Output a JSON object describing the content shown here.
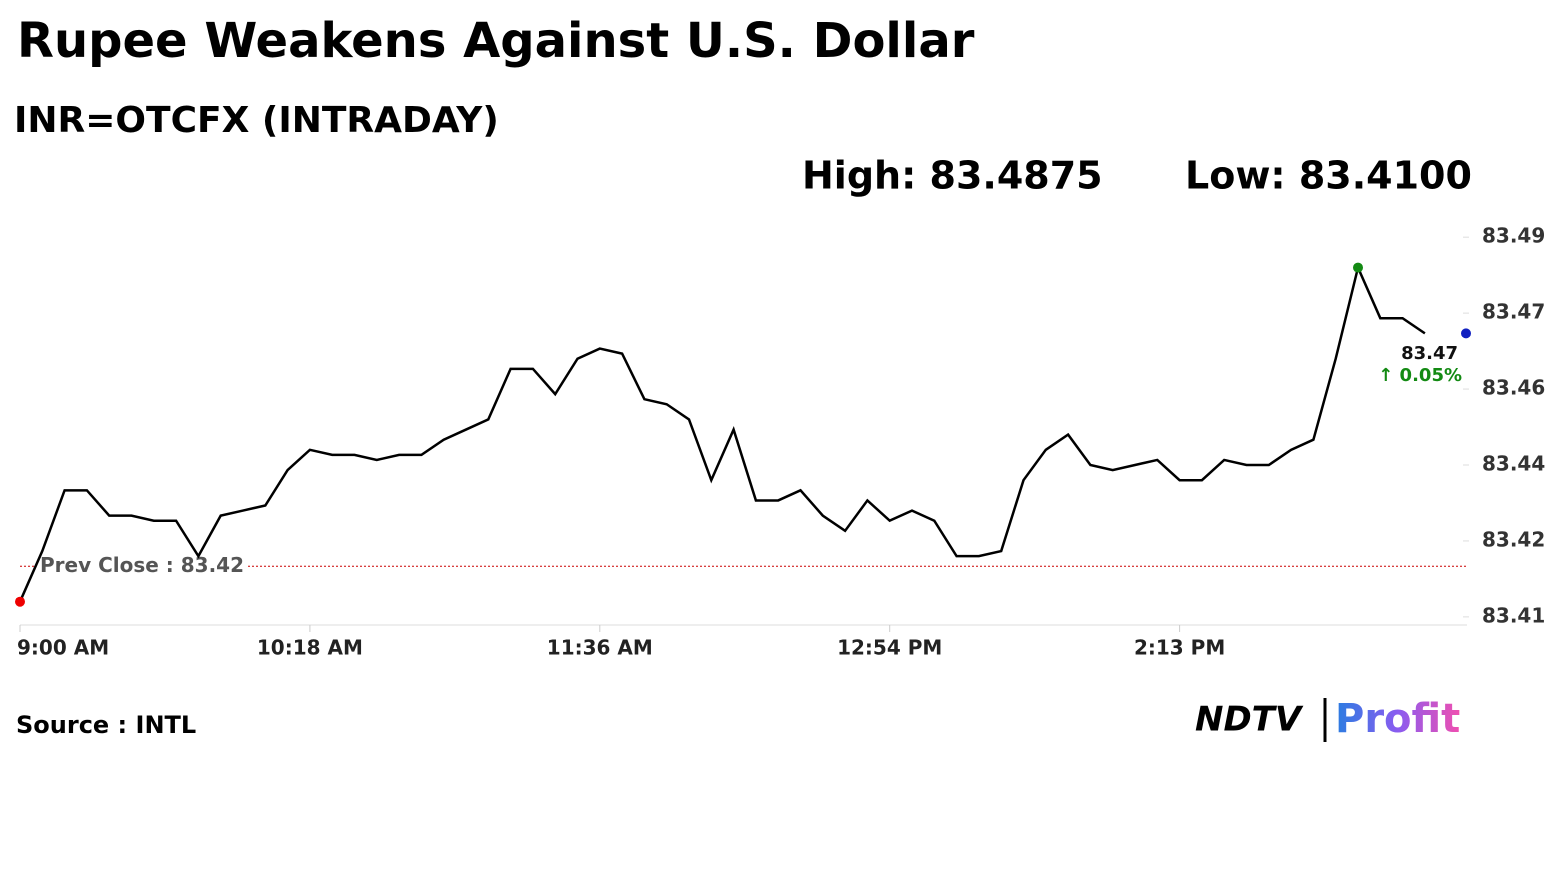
{
  "chart_data": {
    "type": "line",
    "title": "Rupee Weakens Against U.S. Dollar",
    "subtitle": "INR=OTCFX (INTRADAY)",
    "high_label": "High: 83.4875",
    "low_label": "Low: 83.4100",
    "prev_close_label": "Prev Close : 83.42",
    "prev_close": 83.42,
    "last_label": "83.47",
    "change_label": "↑ 0.05%",
    "source": "Source : INTL",
    "logo_left": "NDTV",
    "logo_right": "Profit",
    "color": "#000000",
    "categories": [
      "9:00 AM",
      null,
      null,
      null,
      null,
      null,
      null,
      null,
      null,
      null,
      null,
      null,
      null,
      "10:18 AM",
      null,
      null,
      null,
      null,
      null,
      null,
      null,
      null,
      null,
      null,
      null,
      null,
      "11:36 AM",
      null,
      null,
      null,
      null,
      null,
      null,
      null,
      null,
      null,
      null,
      null,
      null,
      "12:54 PM",
      null,
      null,
      null,
      null,
      null,
      null,
      null,
      null,
      null,
      null,
      null,
      null,
      "2:13 PM",
      null,
      null,
      null,
      null,
      null,
      null,
      null,
      null,
      null,
      null,
      null
    ],
    "values": [
      83.413,
      83.423,
      83.435,
      83.435,
      83.43,
      83.43,
      83.429,
      83.429,
      83.422,
      83.43,
      83.431,
      83.432,
      83.439,
      83.443,
      83.442,
      83.442,
      83.441,
      83.442,
      83.442,
      83.445,
      83.447,
      83.449,
      83.459,
      83.459,
      83.454,
      83.461,
      83.463,
      83.462,
      83.453,
      83.452,
      83.449,
      83.437,
      83.447,
      83.433,
      83.433,
      83.435,
      83.43,
      83.427,
      83.433,
      83.429,
      83.431,
      83.429,
      83.422,
      83.422,
      83.423,
      83.437,
      83.443,
      83.446,
      83.44,
      83.439,
      83.44,
      83.441,
      83.437,
      83.437,
      83.441,
      83.44,
      83.44,
      83.443,
      83.445,
      83.461,
      83.479,
      83.469,
      83.469,
      83.466
    ],
    "ylim": [
      83.408,
      83.488
    ],
    "yticks": [
      {
        "value": 83.41,
        "label": "83.41"
      },
      {
        "value": 83.425,
        "label": "83.42"
      },
      83.44,
      {
        "value": 83.455,
        "label": "83.46"
      },
      83.47,
      {
        "value": 83.485,
        "label": "83.49"
      }
    ]
  }
}
